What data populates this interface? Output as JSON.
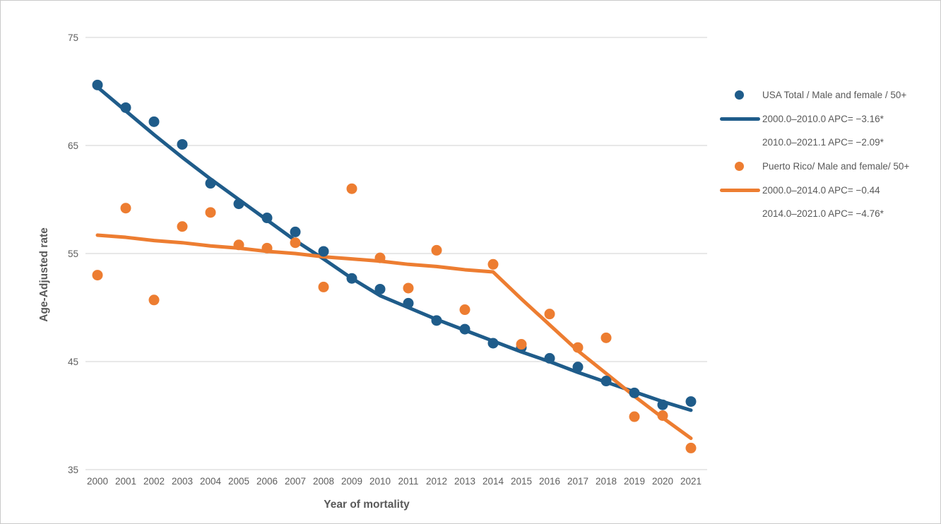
{
  "chart": {
    "xlabel": "Year of mortality",
    "ylabel": "Age-Adjusted rate"
  },
  "chart_data": {
    "type": "scatter",
    "title": "",
    "xlabel": "Year of mortality",
    "ylabel": "Age-Adjusted rate",
    "x": [
      2000,
      2001,
      2002,
      2003,
      2004,
      2005,
      2006,
      2007,
      2008,
      2009,
      2010,
      2011,
      2012,
      2013,
      2014,
      2015,
      2016,
      2017,
      2018,
      2019,
      2020,
      2021
    ],
    "x_tick_labels": [
      "2000",
      "2001",
      "2002",
      "2003",
      "2004",
      "2005",
      "2006",
      "2007",
      "2008",
      "2009",
      "2010",
      "2011",
      "2012",
      "2013",
      "2014",
      "2015",
      "2016",
      "2017",
      "2018",
      "2019",
      "2020",
      "2021"
    ],
    "y_ticks": [
      75,
      65,
      55,
      45,
      35
    ],
    "ylim": [
      35,
      75
    ],
    "grid": "horizontal",
    "legend_position": "right",
    "series": [
      {
        "name": "USA Total / Male and female / 50+",
        "key": "usa",
        "color": "#1f5c8a",
        "values": [
          70.6,
          68.5,
          67.2,
          65.1,
          61.5,
          59.6,
          58.3,
          57.0,
          55.2,
          52.7,
          51.7,
          50.4,
          48.8,
          48.0,
          46.7,
          46.3,
          45.3,
          44.5,
          43.2,
          42.1,
          41.0,
          41.3
        ]
      },
      {
        "name": "Puerto Rico/ Male and female/ 50+",
        "key": "puerto-rico",
        "color": "#ed7d31",
        "values": [
          53.0,
          59.2,
          50.7,
          57.5,
          58.8,
          55.8,
          55.5,
          56.0,
          51.9,
          61.0,
          54.6,
          51.8,
          55.3,
          49.8,
          54.0,
          46.6,
          49.4,
          46.3,
          47.2,
          39.9,
          40.0,
          37.0
        ]
      }
    ],
    "trendlines": [
      {
        "series": "USA Total / Male and female / 50+",
        "key": "usa",
        "color": "#1f5c8a",
        "joinpoint_year": 2010,
        "values": [
          70.4,
          68.2,
          66.0,
          63.9,
          61.9,
          60.0,
          58.1,
          56.2,
          54.5,
          52.7,
          51.1,
          50.0,
          48.9,
          47.9,
          46.9,
          45.9,
          45.0,
          44.0,
          43.1,
          42.2,
          41.3,
          40.5
        ]
      },
      {
        "series": "Puerto Rico/ Male and female/ 50+",
        "key": "puerto-rico",
        "color": "#ed7d31",
        "joinpoint_year": 2014,
        "values": [
          56.7,
          56.5,
          56.2,
          56.0,
          55.7,
          55.5,
          55.2,
          55.0,
          54.7,
          54.5,
          54.3,
          54.0,
          53.8,
          53.5,
          53.3,
          50.8,
          48.4,
          46.0,
          43.9,
          41.8,
          39.8,
          37.9
        ]
      }
    ]
  },
  "legend": {
    "items": [
      {
        "marker": "dot",
        "color": "#1f5c8a",
        "label": "USA Total / Male and female / 50+"
      },
      {
        "marker": "line",
        "color": "#1f5c8a",
        "label": "2000.0–2010.0 APC= −3.16*"
      },
      {
        "marker": "none",
        "color": "",
        "label": "2010.0–2021.1 APC= −2.09*"
      },
      {
        "marker": "dot",
        "color": "#ed7d31",
        "label": "Puerto Rico/ Male and female/ 50+"
      },
      {
        "marker": "line",
        "color": "#ed7d31",
        "label": "2000.0–2014.0 APC= −0.44"
      },
      {
        "marker": "none",
        "color": "",
        "label": "2014.0–2021.0 APC= −4.76*"
      }
    ]
  },
  "colors": {
    "usa": "#1f5c8a",
    "puerto_rico": "#ed7d31",
    "gridline": "#d9d9d9",
    "text": "#595959"
  }
}
